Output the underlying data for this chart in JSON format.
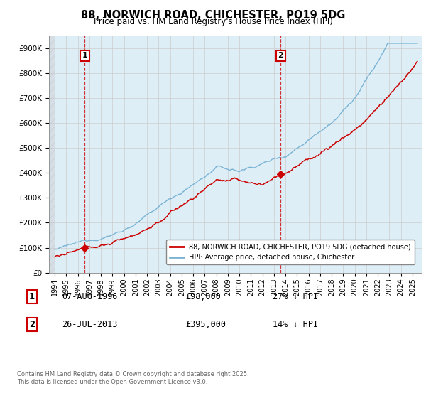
{
  "title_line1": "88, NORWICH ROAD, CHICHESTER, PO19 5DG",
  "title_line2": "Price paid vs. HM Land Registry's House Price Index (HPI)",
  "legend_line1": "88, NORWICH ROAD, CHICHESTER, PO19 5DG (detached house)",
  "legend_line2": "HPI: Average price, detached house, Chichester",
  "sale1_year": 1996.6,
  "sale1_price": 98000,
  "sale2_year": 2013.57,
  "sale2_price": 395000,
  "hpi_color": "#7ab3d4",
  "hpi_fill_color": "#ddeef7",
  "price_color": "#cc0000",
  "annotation_box_color": "#cc0000",
  "background_color": "#ffffff",
  "grid_color": "#cccccc",
  "ymin": 0,
  "ymax": 950000,
  "xmin": 1993.5,
  "xmax": 2025.8,
  "footnote1": "Contains HM Land Registry data © Crown copyright and database right 2025.",
  "footnote2": "This data is licensed under the Open Government Licence v3.0."
}
